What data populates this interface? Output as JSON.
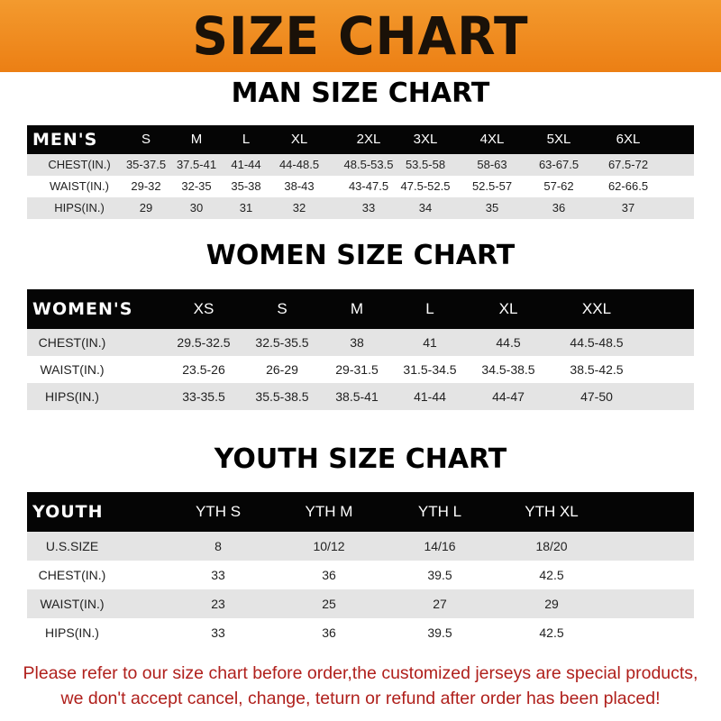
{
  "banner": {
    "title": "SIZE CHART",
    "color": "#ee8a1f"
  },
  "men": {
    "title": "MAN SIZE CHART",
    "header": [
      "MEN'S",
      "S",
      "M",
      "L",
      "XL",
      "2XL",
      "3XL",
      "4XL",
      "5XL",
      "6XL"
    ],
    "rows": [
      [
        "CHEST(IN.)",
        "35-37.5",
        "37.5-41",
        "41-44",
        "44-48.5",
        "48.5-53.5",
        "53.5-58",
        "58-63",
        "63-67.5",
        "67.5-72"
      ],
      [
        "WAIST(IN.)",
        "29-32",
        "32-35",
        "35-38",
        "38-43",
        "43-47.5",
        "47.5-52.5",
        "52.5-57",
        "57-62",
        "62-66.5"
      ],
      [
        "HIPS(IN.)",
        "29",
        "30",
        "31",
        "32",
        "33",
        "34",
        "35",
        "36",
        "37"
      ]
    ]
  },
  "women": {
    "title": "WOMEN SIZE CHART",
    "header": [
      "WOMEN'S",
      "XS",
      "S",
      "M",
      "L",
      "XL",
      "XXL"
    ],
    "rows": [
      [
        "CHEST(IN.)",
        "29.5-32.5",
        "32.5-35.5",
        "38",
        "41",
        "44.5",
        "44.5-48.5"
      ],
      [
        "WAIST(IN.)",
        "23.5-26",
        "26-29",
        "29-31.5",
        "31.5-34.5",
        "34.5-38.5",
        "38.5-42.5"
      ],
      [
        "HIPS(IN.)",
        "33-35.5",
        "35.5-38.5",
        "38.5-41",
        "41-44",
        "44-47",
        "47-50"
      ]
    ]
  },
  "youth": {
    "title": "YOUTH SIZE CHART",
    "header": [
      "YOUTH",
      "YTH S",
      "YTH M",
      "YTH L",
      "YTH XL"
    ],
    "rows": [
      [
        "U.S.SIZE",
        "8",
        "10/12",
        "14/16",
        "18/20"
      ],
      [
        "CHEST(IN.)",
        "33",
        "36",
        "39.5",
        "42.5"
      ],
      [
        "WAIST(IN.)",
        "23",
        "25",
        "27",
        "29"
      ],
      [
        "HIPS(IN.)",
        "33",
        "36",
        "39.5",
        "42.5"
      ]
    ]
  },
  "notice": {
    "line1": "Please refer to our size chart before order,the customized jerseys are special products,",
    "line2": "we don't accept cancel, change, teturn or refund after order has been placed!",
    "color": "#b0201c"
  }
}
